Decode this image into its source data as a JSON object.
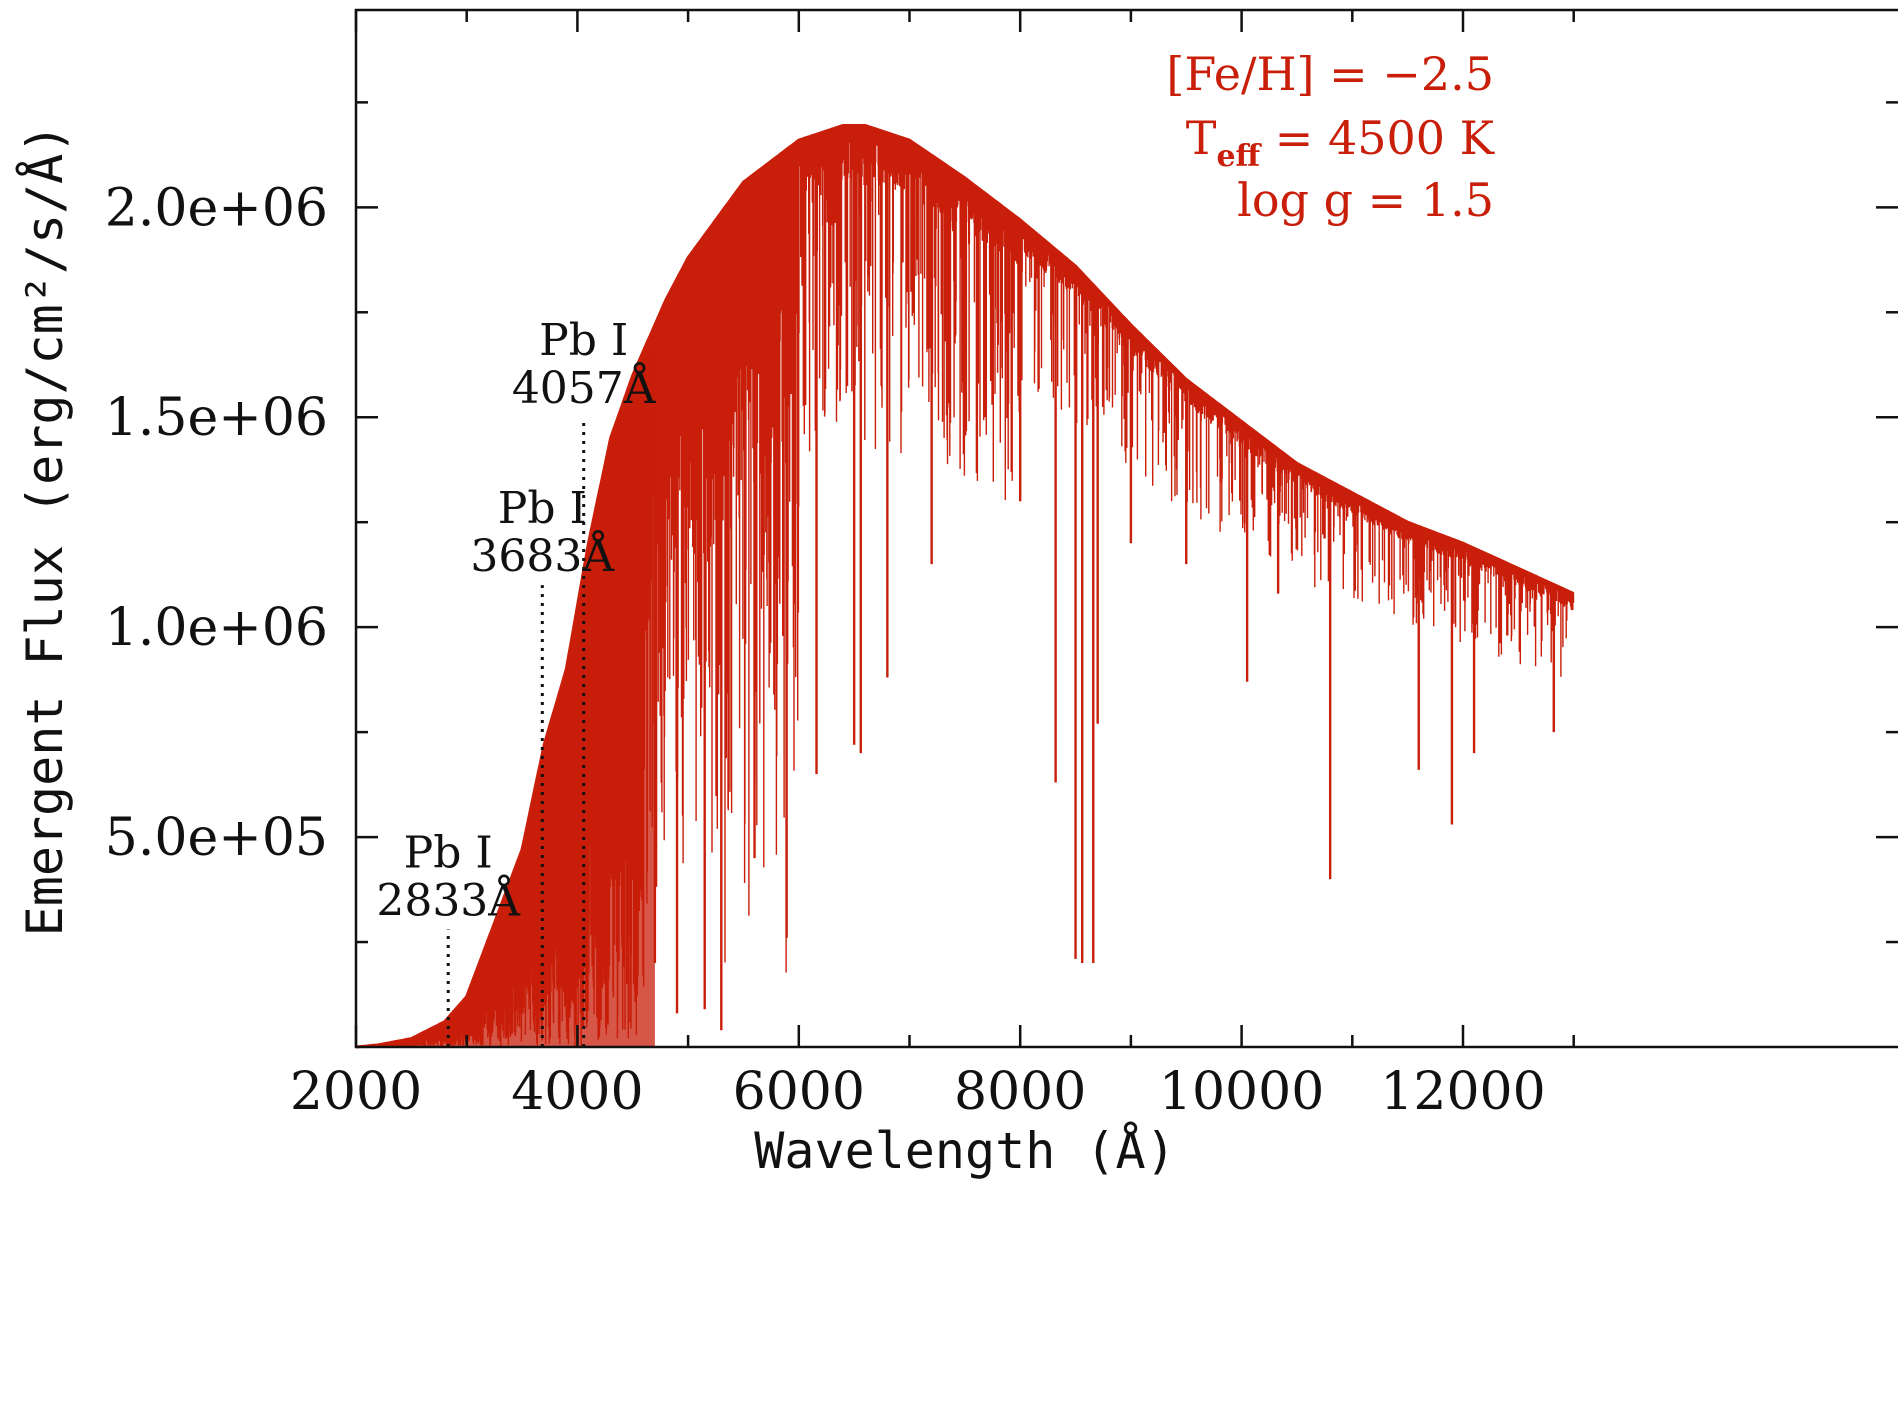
{
  "chart_data": {
    "type": "line",
    "xlabel": "Wavelength (Å)",
    "ylabel": "Emergent Flux (erg/cm²/s/Å)",
    "xlim": [
      2000,
      13000
    ],
    "ylim": [
      0,
      2470000
    ],
    "xticks": [
      2000,
      4000,
      6000,
      8000,
      10000,
      12000
    ],
    "xtick_labels": [
      "2000",
      "4000",
      "6000",
      "8000",
      "10000",
      "12000"
    ],
    "yticks": [
      500000,
      1000000,
      1500000,
      2000000
    ],
    "ytick_labels": [
      "5.0e+05",
      "1.0e+06",
      "1.5e+06",
      "2.0e+06"
    ],
    "grid": false,
    "series": [
      {
        "color": "#c81e0a",
        "continuum": {
          "x": [
            2000,
            2200,
            2500,
            2800,
            3000,
            3200,
            3500,
            3700,
            3900,
            4100,
            4300,
            4500,
            4800,
            5000,
            5500,
            6000,
            6400,
            6600,
            7000,
            7500,
            8000,
            8500,
            9000,
            9500,
            10000,
            10500,
            11000,
            11500,
            12000,
            12500,
            13000
          ],
          "y": [
            0,
            5000,
            20000,
            60000,
            120000,
            260000,
            470000,
            720000,
            900000,
            1200000,
            1450000,
            1600000,
            1780000,
            1880000,
            2060000,
            2160000,
            2195000,
            2195000,
            2160000,
            2070000,
            1970000,
            1860000,
            1720000,
            1590000,
            1490000,
            1390000,
            1320000,
            1250000,
            1200000,
            1140000,
            1080000
          ]
        },
        "absorption_lines": [
          {
            "x": 2830,
            "y": 20000
          },
          {
            "x": 3680,
            "y": 30000
          },
          {
            "x": 4050,
            "y": 50000
          },
          {
            "x": 4200,
            "y": 120000
          },
          {
            "x": 4450,
            "y": 150000
          },
          {
            "x": 4700,
            "y": 200000
          },
          {
            "x": 4900,
            "y": 80000
          },
          {
            "x": 5150,
            "y": 90000
          },
          {
            "x": 5300,
            "y": 40000
          },
          {
            "x": 5600,
            "y": 450000
          },
          {
            "x": 5890,
            "y": 260000
          },
          {
            "x": 6160,
            "y": 650000
          },
          {
            "x": 6500,
            "y": 720000
          },
          {
            "x": 6560,
            "y": 700000
          },
          {
            "x": 6800,
            "y": 880000
          },
          {
            "x": 7200,
            "y": 1150000
          },
          {
            "x": 7680,
            "y": 1500000
          },
          {
            "x": 8000,
            "y": 1300000
          },
          {
            "x": 8320,
            "y": 630000
          },
          {
            "x": 8500,
            "y": 210000
          },
          {
            "x": 8560,
            "y": 200000
          },
          {
            "x": 8660,
            "y": 200000
          },
          {
            "x": 8700,
            "y": 770000
          },
          {
            "x": 9000,
            "y": 1200000
          },
          {
            "x": 9500,
            "y": 1150000
          },
          {
            "x": 10050,
            "y": 870000
          },
          {
            "x": 10330,
            "y": 1080000
          },
          {
            "x": 10800,
            "y": 400000
          },
          {
            "x": 11600,
            "y": 660000
          },
          {
            "x": 11900,
            "y": 530000
          },
          {
            "x": 12100,
            "y": 700000
          },
          {
            "x": 12400,
            "y": 980000
          },
          {
            "x": 12820,
            "y": 750000
          }
        ]
      }
    ],
    "annotations": [
      {
        "line1": "Pb I",
        "line2": "2833Å",
        "x": 2833,
        "y_top": 280000
      },
      {
        "line1": "Pb I",
        "line2": "3683Å",
        "x": 3683,
        "y_top": 1100000
      },
      {
        "line1": "Pb I",
        "line2": "4057Å",
        "x": 4057,
        "y_top": 1500000
      }
    ],
    "params": {
      "feh": "[Fe/H] = −2.5",
      "teff_prefix": "T",
      "teff_sub": "eff",
      "teff_value": " = 4500 K",
      "logg": "log g = 1.5",
      "placement": "top-right",
      "color": "#c81e0a"
    }
  }
}
